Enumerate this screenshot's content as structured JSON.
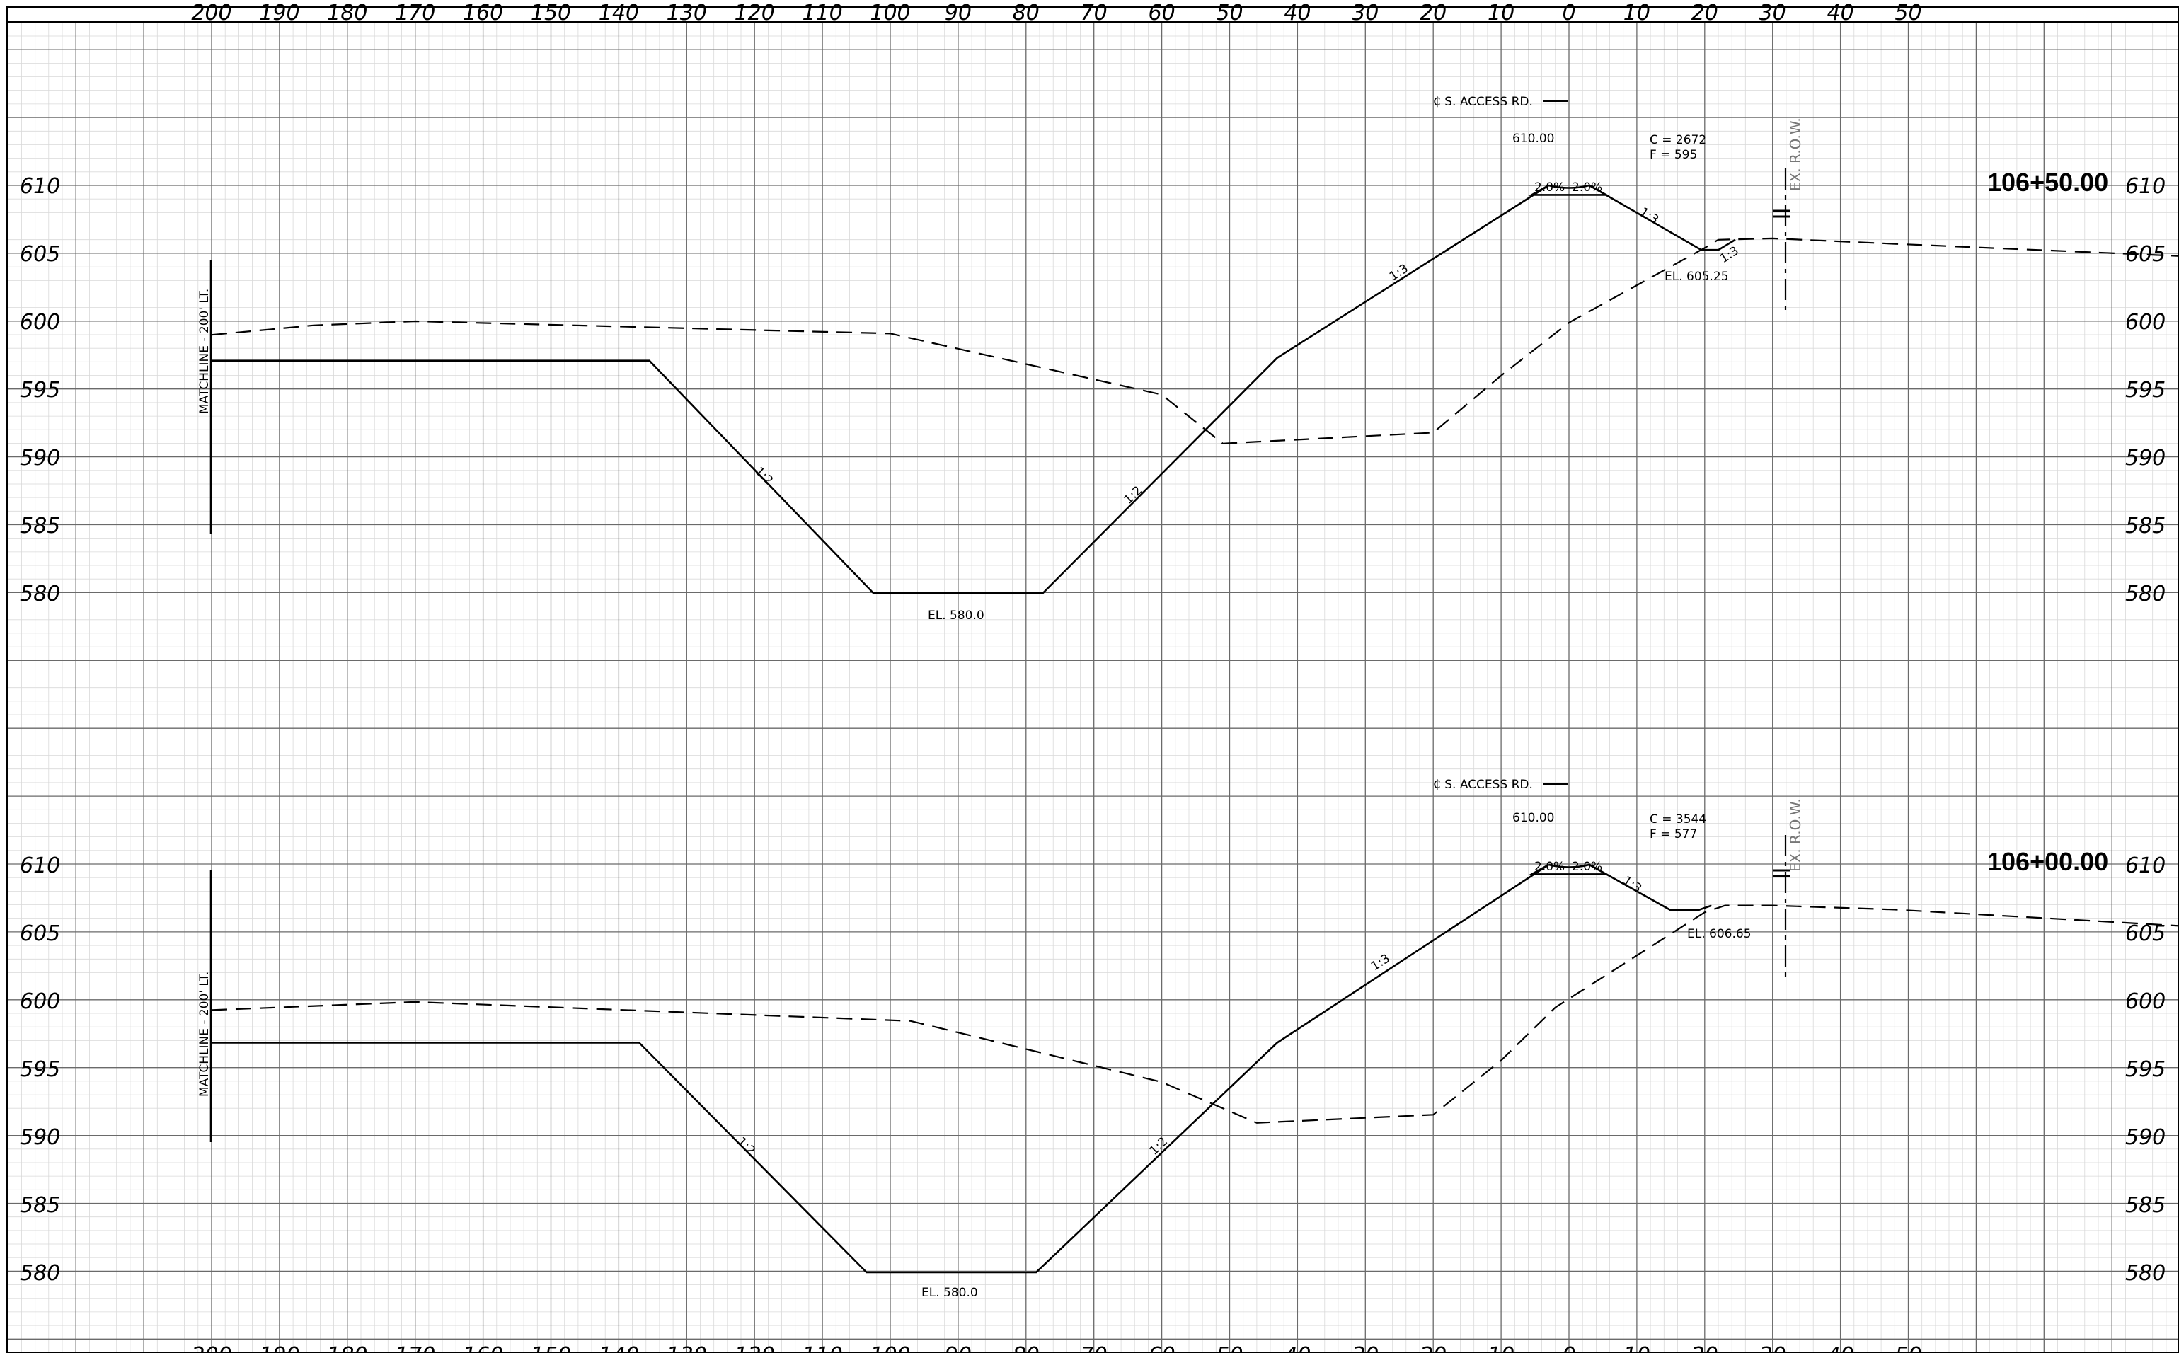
{
  "sheet": {
    "offsets_top": [
      "200",
      "190",
      "180",
      "170",
      "160",
      "150",
      "140",
      "130",
      "120",
      "110",
      "100",
      "90",
      "80",
      "70",
      "60",
      "50",
      "40",
      "30",
      "20",
      "10",
      "0",
      "10",
      "20",
      "30",
      "40",
      "50"
    ],
    "offsets_bottom": [
      "200",
      "190",
      "180",
      "170",
      "160",
      "150",
      "140",
      "130",
      "120",
      "110",
      "100",
      "90",
      "80",
      "70",
      "60",
      "50",
      "40",
      "30",
      "20",
      "10",
      "0",
      "10",
      "20",
      "30",
      "40",
      "50"
    ]
  },
  "sections": [
    {
      "station": "106+50.00",
      "elevations": [
        "610",
        "605",
        "600",
        "595",
        "590",
        "585",
        "580"
      ],
      "elevations_right": [
        "610",
        "605",
        "600",
        "595",
        "590",
        "585",
        "580"
      ],
      "matchline": "MATCHLINE - 200' LT.",
      "centerline": "₵ S. ACCESS RD.",
      "centerline_elev": "610.00",
      "cut": "C = 2672",
      "fill": "F = 595",
      "crown_left": "2.0%",
      "crown_right": "2.0%",
      "row_label": "EX. R.O.W.",
      "slopes": [
        "1:2",
        "1:2",
        "1:3",
        "1:3",
        "1:3"
      ],
      "el_bottom": "EL. 580.0",
      "el_ditch": "EL. 605.25",
      "proposed_profile": [
        {
          "offset": -200,
          "elev": 597.1
        },
        {
          "offset": -135.5,
          "elev": 597.1
        },
        {
          "offset": -102.5,
          "elev": 580.0
        },
        {
          "offset": -77.5,
          "elev": 580.0
        },
        {
          "offset": -43,
          "elev": 597.3
        },
        {
          "offset": -3,
          "elev": 610.0
        },
        {
          "offset": -5.5,
          "elev": 609.3
        },
        {
          "offset": 5.5,
          "elev": 609.3
        },
        {
          "offset": 3,
          "elev": 610.0
        },
        {
          "offset": 19.5,
          "elev": 605.25
        },
        {
          "offset": 22,
          "elev": 605.25
        },
        {
          "offset": 24.5,
          "elev": 606.0
        }
      ],
      "existing_profile": [
        {
          "offset": -200,
          "elev": 599.0
        },
        {
          "offset": -185,
          "elev": 599.7
        },
        {
          "offset": -170,
          "elev": 600.0
        },
        {
          "offset": -100,
          "elev": 599.1
        },
        {
          "offset": -60,
          "elev": 594.6
        },
        {
          "offset": -51,
          "elev": 591.0
        },
        {
          "offset": -20,
          "elev": 591.8
        },
        {
          "offset": -10,
          "elev": 596.0
        },
        {
          "offset": 0,
          "elev": 599.9
        },
        {
          "offset": 20,
          "elev": 605.4
        },
        {
          "offset": 22,
          "elev": 606.0
        },
        {
          "offset": 30,
          "elev": 606.1
        },
        {
          "offset": 48,
          "elev": 605.7
        },
        {
          "offset": 90,
          "elev": 604.8
        }
      ]
    },
    {
      "station": "106+00.00",
      "elevations": [
        "610",
        "605",
        "600",
        "595",
        "590",
        "585",
        "580"
      ],
      "elevations_right": [
        "610",
        "605",
        "600",
        "595",
        "590",
        "585",
        "580"
      ],
      "matchline": "MATCHLINE - 200' LT.",
      "centerline": "₵ S. ACCESS RD.",
      "centerline_elev": "610.00",
      "cut": "C = 3544",
      "fill": "F = 577",
      "crown_left": "2.0%",
      "crown_right": "2.0%",
      "row_label": "EX. R.O.W.",
      "slopes": [
        "1:2",
        "1:2",
        "1:3",
        "1:3"
      ],
      "el_bottom": "EL. 580.0",
      "el_ditch": "EL. 606.65",
      "proposed_profile": [
        {
          "offset": -200,
          "elev": 596.9
        },
        {
          "offset": -137,
          "elev": 596.9
        },
        {
          "offset": -103.5,
          "elev": 580.0
        },
        {
          "offset": -78.5,
          "elev": 580.0
        },
        {
          "offset": -43,
          "elev": 596.9
        },
        {
          "offset": -3,
          "elev": 610.0
        },
        {
          "offset": -5.5,
          "elev": 609.3
        },
        {
          "offset": 5.5,
          "elev": 609.3
        },
        {
          "offset": 3,
          "elev": 610.0
        },
        {
          "offset": 15,
          "elev": 606.65
        },
        {
          "offset": 19,
          "elev": 606.65
        },
        {
          "offset": 21,
          "elev": 607.0
        }
      ],
      "existing_profile": [
        {
          "offset": -200,
          "elev": 599.3
        },
        {
          "offset": -170,
          "elev": 599.9
        },
        {
          "offset": -97,
          "elev": 598.5
        },
        {
          "offset": -60,
          "elev": 594.0
        },
        {
          "offset": -46,
          "elev": 591.0
        },
        {
          "offset": -20,
          "elev": 591.6
        },
        {
          "offset": -10,
          "elev": 595.6
        },
        {
          "offset": -2,
          "elev": 599.5
        },
        {
          "offset": 20,
          "elev": 606.5
        },
        {
          "offset": 23,
          "elev": 607.0
        },
        {
          "offset": 30,
          "elev": 607.0
        },
        {
          "offset": 48,
          "elev": 606.7
        },
        {
          "offset": 90,
          "elev": 605.5
        }
      ]
    }
  ]
}
